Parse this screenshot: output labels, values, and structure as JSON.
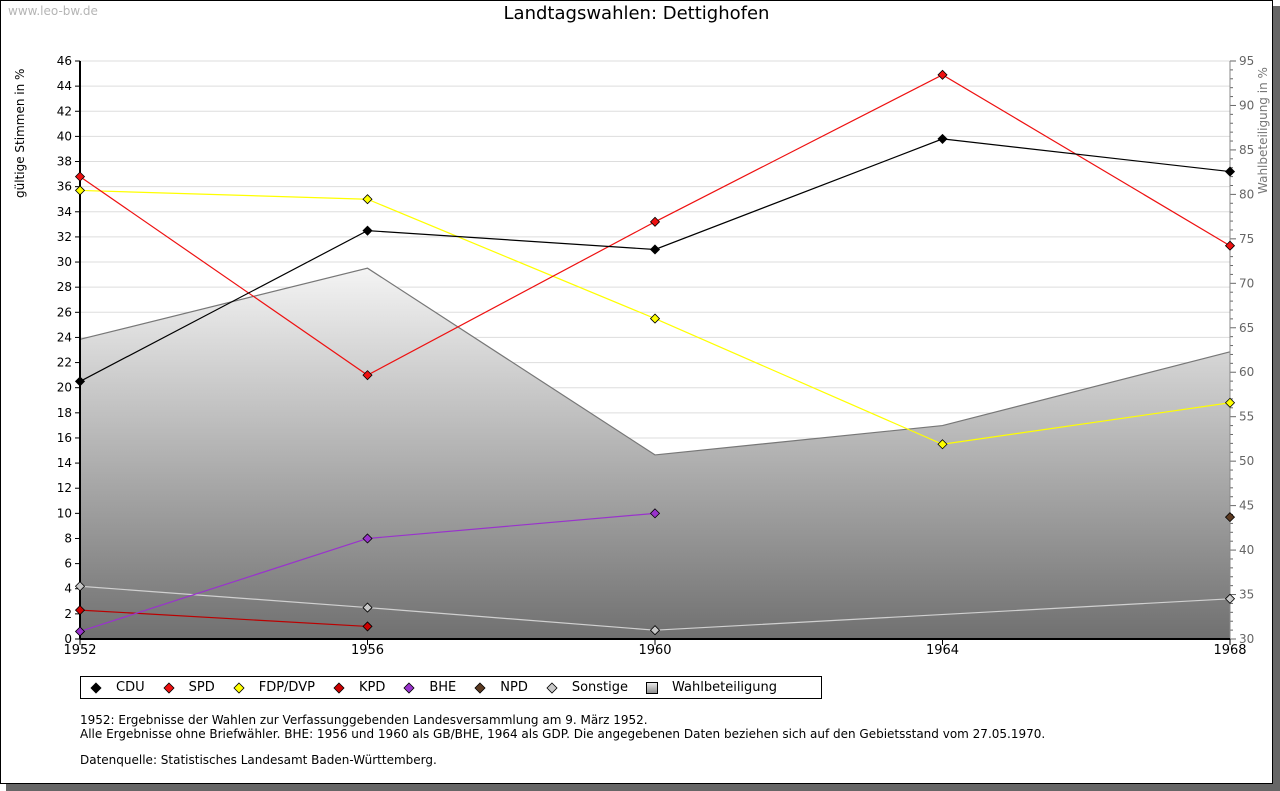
{
  "watermark": "www.leo-bw.de",
  "colors": {
    "CDU": "#000000",
    "SPD": "#ee1111",
    "FDP/DVP": "#ffff00",
    "KPD": "#cc0000",
    "BHE": "#9933cc",
    "NPD": "#5c3a21",
    "Sonstige": "#c8c8c8",
    "Wahlbeteiligung": "#aaaaaa"
  },
  "chart_data": {
    "type": "line",
    "title": "Landtagswahlen: Dettighofen",
    "xlabel": "",
    "ylabel": "gültige Stimmen in %",
    "ylabel_right": "Wahlbeteiligung in %",
    "x": [
      "1952",
      "1956",
      "1960",
      "1964",
      "1968"
    ],
    "ylim": [
      0,
      46
    ],
    "ylim_right": [
      30,
      95
    ],
    "yticks": [
      "0",
      "2",
      "4",
      "6",
      "8",
      "10",
      "12",
      "14",
      "16",
      "18",
      "20",
      "22",
      "24",
      "26",
      "28",
      "30",
      "32",
      "34",
      "36",
      "38",
      "40",
      "42",
      "44",
      "46"
    ],
    "yticks_right": [
      "30",
      "35",
      "40",
      "45",
      "50",
      "55",
      "60",
      "65",
      "70",
      "75",
      "80",
      "85",
      "90",
      "95"
    ],
    "grid": true,
    "legend_position": "bottom",
    "series": [
      {
        "name": "Wahlbeteiligung",
        "axis": "right",
        "kind": "area",
        "values": [
          63.7,
          71.7,
          50.7,
          54.0,
          62.3
        ]
      },
      {
        "name": "Sonstige",
        "axis": "left",
        "kind": "line",
        "values": [
          4.2,
          2.5,
          0.7,
          null,
          3.2
        ],
        "connect_gaps": true
      },
      {
        "name": "KPD",
        "axis": "left",
        "kind": "line",
        "values": [
          2.3,
          1.0,
          null,
          null,
          null
        ]
      },
      {
        "name": "BHE",
        "axis": "left",
        "kind": "line",
        "values": [
          0.6,
          8.0,
          10.0,
          null,
          null
        ]
      },
      {
        "name": "NPD",
        "axis": "left",
        "kind": "line",
        "values": [
          null,
          null,
          null,
          null,
          9.7
        ]
      },
      {
        "name": "FDP/DVP",
        "axis": "left",
        "kind": "line",
        "values": [
          35.7,
          35.0,
          25.5,
          15.5,
          18.8
        ]
      },
      {
        "name": "SPD",
        "axis": "left",
        "kind": "line",
        "values": [
          36.8,
          21.0,
          33.2,
          44.9,
          31.3
        ]
      },
      {
        "name": "CDU",
        "axis": "left",
        "kind": "line",
        "values": [
          20.5,
          32.5,
          31.0,
          39.8,
          37.2
        ]
      }
    ],
    "legend": [
      "CDU",
      "SPD",
      "FDP/DVP",
      "KPD",
      "BHE",
      "NPD",
      "Sonstige",
      "Wahlbeteiligung"
    ]
  },
  "notes": {
    "line1": "1952: Ergebnisse der Wahlen zur Verfassunggebenden Landesversammlung am 9. März 1952.",
    "line2": "Alle Ergebnisse ohne Briefwähler. BHE: 1956 und 1960 als GB/BHE, 1964 als GDP. Die angegebenen Daten beziehen sich auf den Gebietsstand vom 27.05.1970.",
    "line3": "Datenquelle: Statistisches Landesamt Baden-Württemberg."
  }
}
